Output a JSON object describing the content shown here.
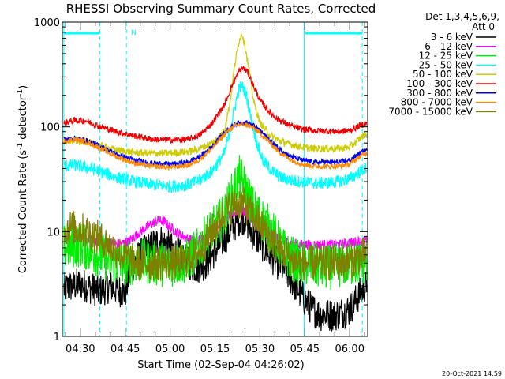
{
  "chart_data": {
    "type": "line",
    "title": "RHESSI Observing Summary Count Rates, Corrected",
    "xlabel": "Start Time (02-Sep-04 04:26:02)",
    "ylabel_pre": "Corrected Count Rate (s",
    "ylabel_sup1": "-1",
    "ylabel_mid": " detector",
    "ylabel_sup2": "-1",
    "ylabel_post": ")",
    "y_scale": "log",
    "ylim": [
      1,
      1000
    ],
    "xlim_minutes": [
      264,
      366
    ],
    "y_ticks": [
      {
        "v": 1,
        "label": "1"
      },
      {
        "v": 10,
        "label": "10"
      },
      {
        "v": 100,
        "label": "100"
      },
      {
        "v": 1000,
        "label": "1000"
      }
    ],
    "x_ticks": [
      {
        "m": 270,
        "label": "04:30"
      },
      {
        "m": 285,
        "label": "04:45"
      },
      {
        "m": 300,
        "label": "05:00"
      },
      {
        "m": 315,
        "label": "05:15"
      },
      {
        "m": 330,
        "label": "05:30"
      },
      {
        "m": 345,
        "label": "05:45"
      },
      {
        "m": 360,
        "label": "06:00"
      }
    ],
    "legend_header": [
      "Det 1,3,4,5,6,9,",
      "Att 0"
    ],
    "legend_placement": "right",
    "footer_date": "20-Oct-2021 14:59",
    "night_flag": "N",
    "markers": {
      "solid_lines_min": [
        264.5,
        344.8
      ],
      "dashed_lines_min": [
        276.5,
        285.4,
        364.2
      ],
      "bars": [
        [
          264.5,
          276.5
        ],
        [
          345.2,
          364.2
        ]
      ]
    },
    "series": [
      {
        "name": "3 - 6 keV",
        "color": "#000000",
        "noise": 0.16,
        "points": [
          [
            264,
            2.8
          ],
          [
            270,
            3.2
          ],
          [
            276,
            2.7
          ],
          [
            280,
            3.0
          ],
          [
            285,
            2.6
          ],
          [
            287,
            4.5
          ],
          [
            290,
            6.0
          ],
          [
            294,
            7.5
          ],
          [
            297,
            8.2
          ],
          [
            300,
            7.0
          ],
          [
            303,
            6.0
          ],
          [
            306,
            5.0
          ],
          [
            309,
            4.5
          ],
          [
            312,
            5.0
          ],
          [
            315,
            6.5
          ],
          [
            318,
            8.5
          ],
          [
            321,
            11
          ],
          [
            323,
            13
          ],
          [
            325,
            13.5
          ],
          [
            327,
            10
          ],
          [
            330,
            8
          ],
          [
            333,
            6
          ],
          [
            336,
            5
          ],
          [
            339,
            4
          ],
          [
            342,
            3
          ],
          [
            346,
            2
          ],
          [
            350,
            1.6
          ],
          [
            355,
            1.6
          ],
          [
            360,
            1.8
          ],
          [
            365,
            3.0
          ]
        ]
      },
      {
        "name": "6 - 12 keV",
        "color": "#ff00ff",
        "noise": 0.05,
        "points": [
          [
            264,
            8.5
          ],
          [
            270,
            8.8
          ],
          [
            276,
            8.0
          ],
          [
            282,
            7.5
          ],
          [
            286,
            8.0
          ],
          [
            290,
            10
          ],
          [
            294,
            12
          ],
          [
            296,
            12.8
          ],
          [
            298,
            12.5
          ],
          [
            300,
            11
          ],
          [
            303,
            9.5
          ],
          [
            306,
            8.5
          ],
          [
            309,
            8.0
          ],
          [
            312,
            9.0
          ],
          [
            315,
            11
          ],
          [
            318,
            13
          ],
          [
            321,
            15
          ],
          [
            323,
            16
          ],
          [
            325,
            15.5
          ],
          [
            327,
            13
          ],
          [
            330,
            11
          ],
          [
            333,
            9.5
          ],
          [
            336,
            8.5
          ],
          [
            339,
            8.0
          ],
          [
            343,
            7.5
          ],
          [
            347,
            7.5
          ],
          [
            352,
            7.5
          ],
          [
            357,
            7.5
          ],
          [
            362,
            8.0
          ],
          [
            365,
            8.2
          ]
        ]
      },
      {
        "name": "12 - 25 keV",
        "color": "#00ee00",
        "noise": 0.22,
        "points": [
          [
            264,
            7.0
          ],
          [
            270,
            7.5
          ],
          [
            276,
            6.0
          ],
          [
            282,
            5.0
          ],
          [
            286,
            5.0
          ],
          [
            290,
            5.2
          ],
          [
            295,
            5.0
          ],
          [
            300,
            4.8
          ],
          [
            305,
            5.2
          ],
          [
            309,
            6.5
          ],
          [
            312,
            9.0
          ],
          [
            315,
            11
          ],
          [
            318,
            14
          ],
          [
            320,
            20
          ],
          [
            322,
            28
          ],
          [
            323,
            33
          ],
          [
            324,
            30
          ],
          [
            326,
            22
          ],
          [
            328,
            16
          ],
          [
            330,
            14
          ],
          [
            333,
            11
          ],
          [
            336,
            8
          ],
          [
            339,
            6
          ],
          [
            343,
            5
          ],
          [
            347,
            4.8
          ],
          [
            352,
            4.5
          ],
          [
            357,
            4.8
          ],
          [
            362,
            5.0
          ],
          [
            365,
            5.2
          ]
        ]
      },
      {
        "name": "25 - 50 keV",
        "color": "#00ffff",
        "noise": 0.06,
        "points": [
          [
            264,
            42
          ],
          [
            268,
            43
          ],
          [
            272,
            41
          ],
          [
            276,
            38
          ],
          [
            282,
            33
          ],
          [
            288,
            30
          ],
          [
            294,
            28
          ],
          [
            300,
            27
          ],
          [
            306,
            28
          ],
          [
            310,
            31
          ],
          [
            314,
            38
          ],
          [
            318,
            55
          ],
          [
            320,
            90
          ],
          [
            321.5,
            150
          ],
          [
            323,
            230
          ],
          [
            324,
            250
          ],
          [
            325.5,
            200
          ],
          [
            327,
            120
          ],
          [
            329,
            70
          ],
          [
            331,
            48
          ],
          [
            334,
            38
          ],
          [
            337,
            33
          ],
          [
            340,
            31
          ],
          [
            344,
            30
          ],
          [
            348,
            29
          ],
          [
            352,
            29
          ],
          [
            356,
            30
          ],
          [
            360,
            32
          ],
          [
            365,
            40
          ]
        ]
      },
      {
        "name": "50 - 100 keV",
        "color": "#cccc00",
        "noise": 0.035,
        "points": [
          [
            264,
            72
          ],
          [
            268,
            74
          ],
          [
            272,
            72
          ],
          [
            276,
            67
          ],
          [
            282,
            60
          ],
          [
            288,
            57
          ],
          [
            294,
            56
          ],
          [
            300,
            56
          ],
          [
            306,
            58
          ],
          [
            310,
            62
          ],
          [
            314,
            70
          ],
          [
            318,
            90
          ],
          [
            320,
            170
          ],
          [
            321.5,
            380
          ],
          [
            323,
            660
          ],
          [
            324,
            780
          ],
          [
            325,
            600
          ],
          [
            326.5,
            330
          ],
          [
            328,
            170
          ],
          [
            330,
            110
          ],
          [
            333,
            85
          ],
          [
            336,
            75
          ],
          [
            340,
            68
          ],
          [
            344,
            64
          ],
          [
            348,
            62
          ],
          [
            352,
            62
          ],
          [
            356,
            62
          ],
          [
            360,
            64
          ],
          [
            365,
            85
          ]
        ]
      },
      {
        "name": "100 - 300 keV",
        "color": "#ee0000",
        "noise": 0.03,
        "points": [
          [
            264,
            108
          ],
          [
            268,
            115
          ],
          [
            272,
            114
          ],
          [
            276,
            102
          ],
          [
            282,
            90
          ],
          [
            288,
            82
          ],
          [
            294,
            76
          ],
          [
            300,
            75
          ],
          [
            306,
            76
          ],
          [
            310,
            84
          ],
          [
            314,
            108
          ],
          [
            318,
            160
          ],
          [
            321,
            260
          ],
          [
            323,
            340
          ],
          [
            324.5,
            365
          ],
          [
            326,
            330
          ],
          [
            328,
            240
          ],
          [
            330,
            180
          ],
          [
            333,
            140
          ],
          [
            336,
            118
          ],
          [
            340,
            103
          ],
          [
            344,
            95
          ],
          [
            348,
            92
          ],
          [
            352,
            91
          ],
          [
            356,
            90
          ],
          [
            360,
            92
          ],
          [
            365,
            108
          ]
        ]
      },
      {
        "name": "300 - 800 keV",
        "color": "#0000ee",
        "noise": 0.025,
        "points": [
          [
            264,
            76
          ],
          [
            268,
            78
          ],
          [
            272,
            74
          ],
          [
            276,
            67
          ],
          [
            282,
            55
          ],
          [
            288,
            48
          ],
          [
            294,
            45
          ],
          [
            300,
            44
          ],
          [
            306,
            46
          ],
          [
            310,
            52
          ],
          [
            314,
            65
          ],
          [
            317,
            82
          ],
          [
            320,
            98
          ],
          [
            322,
            107
          ],
          [
            324,
            111
          ],
          [
            326,
            109
          ],
          [
            328,
            102
          ],
          [
            330,
            92
          ],
          [
            333,
            76
          ],
          [
            336,
            63
          ],
          [
            340,
            53
          ],
          [
            344,
            48
          ],
          [
            348,
            46
          ],
          [
            352,
            46
          ],
          [
            356,
            46
          ],
          [
            360,
            48
          ],
          [
            365,
            60
          ]
        ]
      },
      {
        "name": "800 - 7000 keV",
        "color": "#ff8800",
        "noise": 0.025,
        "points": [
          [
            264,
            72
          ],
          [
            268,
            76
          ],
          [
            272,
            72
          ],
          [
            276,
            64
          ],
          [
            282,
            52
          ],
          [
            288,
            45
          ],
          [
            294,
            42
          ],
          [
            300,
            41
          ],
          [
            306,
            43
          ],
          [
            310,
            49
          ],
          [
            314,
            62
          ],
          [
            317,
            78
          ],
          [
            320,
            95
          ],
          [
            322,
            103
          ],
          [
            324,
            106
          ],
          [
            326,
            104
          ],
          [
            328,
            97
          ],
          [
            330,
            87
          ],
          [
            333,
            72
          ],
          [
            336,
            59
          ],
          [
            340,
            49
          ],
          [
            344,
            44
          ],
          [
            348,
            42
          ],
          [
            352,
            42
          ],
          [
            356,
            42
          ],
          [
            360,
            44
          ],
          [
            365,
            56
          ]
        ]
      },
      {
        "name": "7000 - 15000 keV",
        "color": "#808000",
        "noise": 0.17,
        "points": [
          [
            264,
            10.5
          ],
          [
            267,
            11
          ],
          [
            270,
            10.5
          ],
          [
            274,
            9.5
          ],
          [
            278,
            8.0
          ],
          [
            282,
            6.5
          ],
          [
            286,
            5.5
          ],
          [
            290,
            5.0
          ],
          [
            295,
            5.0
          ],
          [
            300,
            5.0
          ],
          [
            305,
            5.2
          ],
          [
            309,
            6.2
          ],
          [
            312,
            8.0
          ],
          [
            315,
            11
          ],
          [
            318,
            15
          ],
          [
            321,
            18
          ],
          [
            323,
            19
          ],
          [
            325,
            18
          ],
          [
            327,
            15
          ],
          [
            330,
            12
          ],
          [
            333,
            9
          ],
          [
            336,
            7
          ],
          [
            340,
            5.5
          ],
          [
            344,
            5.0
          ],
          [
            348,
            5.0
          ],
          [
            352,
            5.0
          ],
          [
            356,
            5.0
          ],
          [
            360,
            5.2
          ],
          [
            365,
            6.0
          ]
        ]
      }
    ]
  }
}
